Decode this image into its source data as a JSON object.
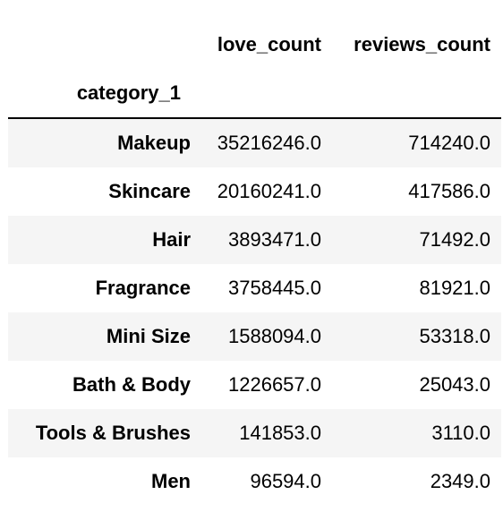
{
  "table": {
    "columns": [
      "love_count",
      "reviews_count"
    ],
    "index_name": "category_1",
    "rows": [
      {
        "label": "Makeup",
        "love_count": "35216246.0",
        "reviews_count": "714240.0"
      },
      {
        "label": "Skincare",
        "love_count": "20160241.0",
        "reviews_count": "417586.0"
      },
      {
        "label": "Hair",
        "love_count": "3893471.0",
        "reviews_count": "71492.0"
      },
      {
        "label": "Fragrance",
        "love_count": "3758445.0",
        "reviews_count": "81921.0"
      },
      {
        "label": "Mini Size",
        "love_count": "1588094.0",
        "reviews_count": "53318.0"
      },
      {
        "label": "Bath & Body",
        "love_count": "1226657.0",
        "reviews_count": "25043.0"
      },
      {
        "label": "Tools & Brushes",
        "love_count": "141853.0",
        "reviews_count": "3110.0"
      },
      {
        "label": "Men",
        "love_count": "96594.0",
        "reviews_count": "2349.0"
      }
    ]
  },
  "colors": {
    "stripe": "#f5f5f5",
    "background": "#ffffff",
    "text": "#000000",
    "rule": "#000000"
  }
}
